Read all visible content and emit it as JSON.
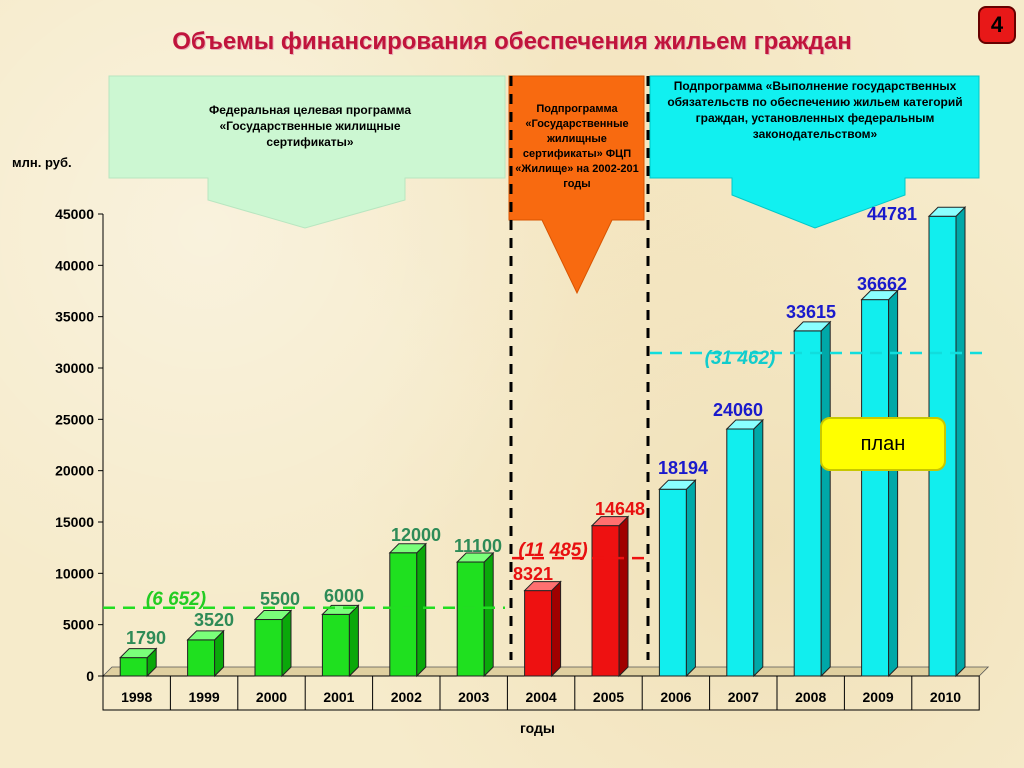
{
  "page": {
    "title": "Объемы финансирования обеспечения жильем граждан",
    "slide_number": "4",
    "unit_label": "млн. руб.",
    "plan_label": "план"
  },
  "banners": {
    "federal": "Федеральная целевая программа «Государственные жилищные сертификаты»",
    "housing": "Подпрограмма «Государственные жилищные сертификаты» ФЦП «Жилище» на 2002-201 годы",
    "obligations": "Подпрограмма «Выполнение государственных обязательств по обеспечению жильем категорий граждан, установленных федеральным законодательством»"
  },
  "colors": {
    "green": "#1fe01f",
    "red": "#ee1111",
    "cyan": "#11eeee",
    "title": "#c0143c",
    "label_green": "#2e8b57",
    "label_red": "#e81010",
    "label_blue": "#1a1acc",
    "banner_green": "#ccf7d2",
    "banner_orange": "#f86a10",
    "banner_cyan": "#11f0f0"
  },
  "chart_data": {
    "type": "bar",
    "title": "Объемы финансирования обеспечения жильем граждан",
    "xlabel": "годы",
    "ylabel": "млн. руб.",
    "ylim": [
      0,
      45000
    ],
    "yticks": [
      0,
      5000,
      10000,
      15000,
      20000,
      25000,
      30000,
      35000,
      40000,
      45000
    ],
    "categories": [
      "1998",
      "1999",
      "2000",
      "2001",
      "2002",
      "2003",
      "2004",
      "2005",
      "2006",
      "2007",
      "2008",
      "2009",
      "2010"
    ],
    "values": [
      1790,
      3520,
      5500,
      6000,
      12000,
      11100,
      8321,
      14648,
      18194,
      24060,
      33615,
      36662,
      44781
    ],
    "groups": [
      "green",
      "green",
      "green",
      "green",
      "green",
      "green",
      "red",
      "red",
      "cyan",
      "cyan",
      "cyan",
      "cyan",
      "cyan"
    ],
    "averages": [
      {
        "label": "(6 652)",
        "value": 6652,
        "group": "green"
      },
      {
        "label": "(11 485)",
        "value": 11485,
        "group": "red"
      },
      {
        "label": "(31 462)",
        "value": 31462,
        "group": "cyan"
      }
    ]
  }
}
